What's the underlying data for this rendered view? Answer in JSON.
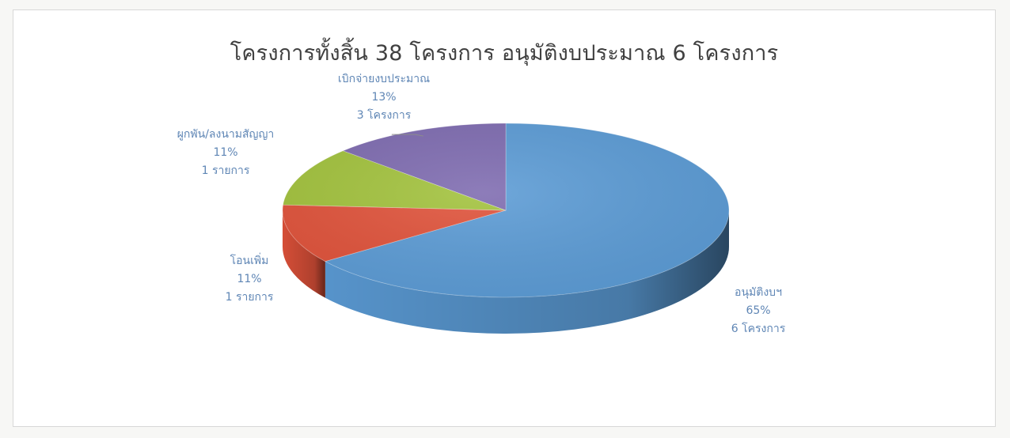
{
  "chart_data": {
    "type": "pie",
    "title": "โครงการทั้งสิ้น 38 โครงการ อนุมัติงบประมาณ 6 โครงการ",
    "slices": [
      {
        "name": "อนุมัติงบฯ",
        "percent": 65,
        "percent_label": "65%",
        "count_label": "6 โครงการ",
        "color": "#5b9bd5"
      },
      {
        "name": "โอนเพิ่ม",
        "percent": 11,
        "percent_label": "11%",
        "count_label": "1 รายการ",
        "color": "#e0523a"
      },
      {
        "name": "ผูกพัน/ลงนามสัญญา",
        "percent": 11,
        "percent_label": "11%",
        "count_label": "1 รายการ",
        "color": "#a2c23c"
      },
      {
        "name": "เบิกจ่ายงบประมาณ",
        "percent": 13,
        "percent_label": "13%",
        "count_label": "3 โครงการ",
        "color": "#7e6bb0"
      }
    ],
    "legend": "none",
    "style": "3d"
  }
}
